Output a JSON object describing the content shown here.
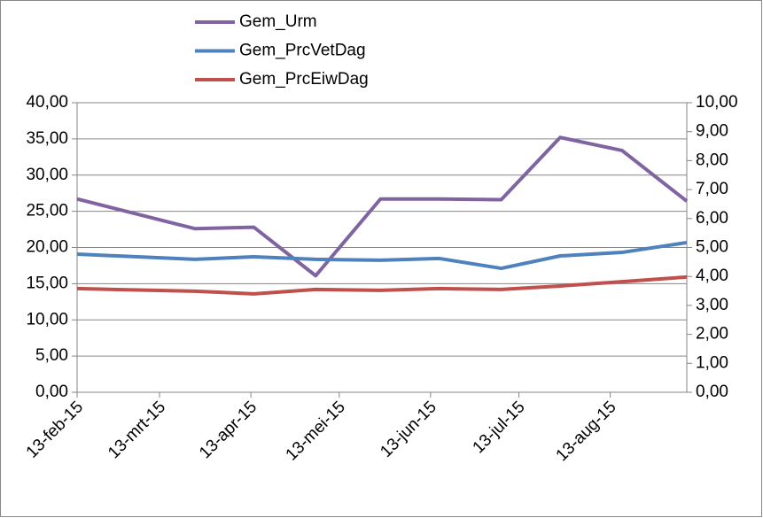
{
  "chart_data": {
    "type": "line",
    "x": [
      "2015-02-13",
      "2015-03-25",
      "2015-04-14",
      "2015-05-05",
      "2015-05-27",
      "2015-06-16",
      "2015-07-07",
      "2015-07-27",
      "2015-08-17",
      "2015-09-08"
    ],
    "xlim": [
      "2015-02-13",
      "2015-09-08"
    ],
    "xticks": [
      {
        "value": "2015-02-13",
        "label": "13-feb-15"
      },
      {
        "value": "2015-03-13",
        "label": "13-mrt-15"
      },
      {
        "value": "2015-04-13",
        "label": "13-apr-15"
      },
      {
        "value": "2015-05-13",
        "label": "13-mei-15"
      },
      {
        "value": "2015-06-13",
        "label": "13-jun-15"
      },
      {
        "value": "2015-07-13",
        "label": "13-jul-15"
      },
      {
        "value": "2015-08-13",
        "label": "13-aug-15"
      }
    ],
    "ylim": [
      0,
      40
    ],
    "yticks": [
      {
        "value": 0,
        "label": "0,00"
      },
      {
        "value": 5,
        "label": "5,00"
      },
      {
        "value": 10,
        "label": "10,00"
      },
      {
        "value": 15,
        "label": "15,00"
      },
      {
        "value": 20,
        "label": "20,00"
      },
      {
        "value": 25,
        "label": "25,00"
      },
      {
        "value": 30,
        "label": "30,00"
      },
      {
        "value": 35,
        "label": "35,00"
      },
      {
        "value": 40,
        "label": "40,00"
      }
    ],
    "y2lim": [
      0,
      10
    ],
    "y2ticks": [
      {
        "value": 0,
        "label": "0,00"
      },
      {
        "value": 1,
        "label": "1,00"
      },
      {
        "value": 2,
        "label": "2,00"
      },
      {
        "value": 3,
        "label": "3,00"
      },
      {
        "value": 4,
        "label": "4,00"
      },
      {
        "value": 5,
        "label": "5,00"
      },
      {
        "value": 6,
        "label": "6,00"
      },
      {
        "value": 7,
        "label": "7,00"
      },
      {
        "value": 8,
        "label": "8,00"
      },
      {
        "value": 9,
        "label": "9,00"
      },
      {
        "value": 10,
        "label": "10,00"
      }
    ],
    "grid": true,
    "legend": "top",
    "series": [
      {
        "name": "Gem_Urm",
        "color": "#8064a2",
        "values": [
          26.7,
          22.6,
          22.8,
          16.1,
          26.7,
          26.7,
          26.6,
          35.2,
          33.4,
          26.4
        ]
      },
      {
        "name": "Gem_PrcVetDag",
        "color": "#4f81bd",
        "axis": "y2",
        "values": [
          4.77,
          4.59,
          4.68,
          4.59,
          4.56,
          4.62,
          4.28,
          4.71,
          4.83,
          5.17
        ]
      },
      {
        "name": "Gem_PrcEiwDag",
        "color": "#c0504d",
        "axis": "y2",
        "values": [
          3.58,
          3.49,
          3.4,
          3.55,
          3.52,
          3.58,
          3.55,
          3.67,
          3.82,
          3.98
        ]
      }
    ]
  }
}
